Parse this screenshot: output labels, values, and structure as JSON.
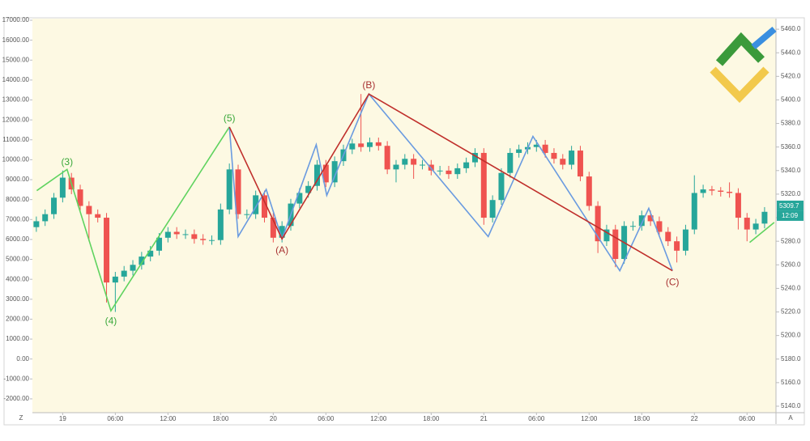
{
  "chart_data": {
    "type": "candlestick",
    "categories": [
      null,
      null,
      null,
      "19",
      null,
      null,
      null,
      null,
      null,
      "06:00",
      null,
      null,
      null,
      null,
      null,
      "12:00",
      null,
      null,
      null,
      null,
      null,
      "18:00",
      null,
      null,
      null,
      null,
      null,
      "20",
      null,
      null,
      null,
      null,
      null,
      "06:00",
      null,
      null,
      null,
      null,
      null,
      "12:00",
      null,
      null,
      null,
      null,
      null,
      "18:00",
      null,
      null,
      null,
      null,
      null,
      "21",
      null,
      null,
      null,
      null,
      null,
      "06:00",
      null,
      null,
      null,
      null,
      null,
      "12:00",
      null,
      null,
      null,
      null,
      null,
      "18:00",
      null,
      null,
      null,
      null,
      null,
      "22",
      null,
      null,
      null,
      null,
      null,
      "06:00",
      null,
      null
    ],
    "series": [
      {
        "axis": "y2",
        "up_color": "#26a69a",
        "down_color": "#ef5350",
        "open": [
          5292,
          5297,
          5303,
          5317,
          5334,
          5324,
          5310,
          5303,
          5300,
          5245,
          5250,
          5255,
          5260,
          5267,
          5272,
          5283,
          5288,
          5286,
          5286,
          5282,
          5281,
          5281,
          5307,
          5341,
          5303,
          5303,
          5319,
          5300,
          5283,
          5293,
          5312,
          5321,
          5327,
          5345,
          5330,
          5348,
          5358,
          5363,
          5360,
          5364,
          5361,
          5341,
          5345,
          5350,
          5345,
          5345,
          5340,
          5340,
          5337,
          5342,
          5347,
          5355,
          5300,
          5315,
          5338,
          5355,
          5358,
          5360,
          5362,
          5355,
          5350,
          5345,
          5357,
          5335,
          5310,
          5280,
          5290,
          5265,
          5293,
          5293,
          5302,
          5297,
          5288,
          5280,
          5272,
          5290,
          5321,
          5324,
          5323,
          5322,
          5321,
          5300,
          5290,
          5295
        ],
        "high": [
          5301,
          5307,
          5321,
          5340,
          5338,
          5328,
          5314,
          5307,
          5304,
          5254,
          5259,
          5264,
          5271,
          5276,
          5287,
          5292,
          5292,
          5290,
          5290,
          5286,
          5285,
          5312,
          5346,
          5345,
          5307,
          5323,
          5323,
          5304,
          5297,
          5316,
          5325,
          5331,
          5349,
          5349,
          5352,
          5362,
          5367,
          5405,
          5368,
          5368,
          5365,
          5349,
          5354,
          5354,
          5349,
          5349,
          5344,
          5344,
          5346,
          5351,
          5359,
          5359,
          5319,
          5342,
          5359,
          5362,
          5364,
          5366,
          5366,
          5359,
          5354,
          5361,
          5361,
          5339,
          5314,
          5294,
          5294,
          5297,
          5297,
          5306,
          5306,
          5301,
          5292,
          5284,
          5294,
          5336,
          5328,
          5327,
          5326,
          5330,
          5325,
          5304,
          5299,
          5309
        ],
        "low": [
          5288,
          5293,
          5299,
          5313,
          5320,
          5306,
          5280,
          5296,
          5228,
          5220,
          5246,
          5251,
          5256,
          5263,
          5268,
          5279,
          5282,
          5282,
          5278,
          5277,
          5277,
          5277,
          5303,
          5299,
          5299,
          5299,
          5296,
          5279,
          5279,
          5289,
          5308,
          5317,
          5323,
          5326,
          5326,
          5344,
          5354,
          5356,
          5356,
          5357,
          5337,
          5330,
          5341,
          5333,
          5341,
          5336,
          5336,
          5333,
          5333,
          5338,
          5343,
          5294,
          5296,
          5311,
          5334,
          5351,
          5354,
          5356,
          5351,
          5346,
          5341,
          5341,
          5331,
          5306,
          5270,
          5276,
          5258,
          5261,
          5289,
          5289,
          5293,
          5284,
          5276,
          5262,
          5268,
          5286,
          5317,
          5319,
          5318,
          5317,
          5290,
          5280,
          5286,
          5291
        ],
        "close": [
          5297,
          5303,
          5317,
          5334,
          5324,
          5310,
          5303,
          5300,
          5245,
          5250,
          5255,
          5260,
          5267,
          5272,
          5283,
          5288,
          5286,
          5286,
          5282,
          5281,
          5281,
          5307,
          5341,
          5303,
          5303,
          5319,
          5300,
          5283,
          5293,
          5312,
          5321,
          5327,
          5345,
          5330,
          5348,
          5358,
          5363,
          5360,
          5364,
          5361,
          5341,
          5345,
          5350,
          5345,
          5345,
          5340,
          5340,
          5337,
          5342,
          5347,
          5355,
          5300,
          5315,
          5338,
          5355,
          5358,
          5360,
          5362,
          5355,
          5350,
          5345,
          5357,
          5335,
          5310,
          5280,
          5290,
          5265,
          5293,
          5293,
          5302,
          5297,
          5288,
          5280,
          5272,
          5290,
          5321,
          5324,
          5323,
          5322,
          5321,
          5300,
          5290,
          5295,
          5305
        ]
      }
    ],
    "waves": [
      {
        "color": "#5fd35f",
        "x": [
          0.05,
          3.5,
          8.5,
          22
        ],
        "values": [
          5323,
          5341,
          5221,
          5377
        ]
      },
      {
        "color": "#5fd35f",
        "x": [
          81.3,
          84.1
        ],
        "values": [
          5279,
          5296
        ]
      },
      {
        "color": "#6a9be0",
        "x": [
          22,
          23,
          26.2,
          28,
          31.9,
          33.1,
          37.9,
          51.5,
          56.6,
          66.5,
          69.8,
          72.5
        ],
        "values": [
          5377,
          5284,
          5324,
          5282,
          5362,
          5319,
          5405,
          5284,
          5369,
          5255,
          5308,
          5255
        ]
      },
      {
        "color": "#c0302c",
        "x": [
          22,
          28,
          37.9,
          72.5
        ],
        "values": [
          5377,
          5282,
          5405,
          5255
        ]
      }
    ],
    "annotations": [
      {
        "text": "(3)",
        "color": "#3aa83a",
        "x": 3.5,
        "y": 5347
      },
      {
        "text": "(4)",
        "color": "#3aa83a",
        "x": 8.5,
        "y": 5212
      },
      {
        "text": "(5)",
        "color": "#3aa83a",
        "x": 22,
        "y": 5384
      },
      {
        "text": "(A)",
        "color": "#a83232",
        "x": 28,
        "y": 5272
      },
      {
        "text": "(B)",
        "color": "#a83232",
        "x": 37.9,
        "y": 5412
      },
      {
        "text": "(C)",
        "color": "#a83232",
        "x": 72.5,
        "y": 5245
      }
    ],
    "ylim": [
      -2693,
      17082
    ],
    "yticks": [
      {
        "value": 17000,
        "label": "17000.00"
      },
      {
        "value": 16000,
        "label": "16000.00"
      },
      {
        "value": 15000,
        "label": "15000.00"
      },
      {
        "value": 14000,
        "label": "14000.00"
      },
      {
        "value": 13000,
        "label": "13000.00"
      },
      {
        "value": 12000,
        "label": "12000.00"
      },
      {
        "value": 11000,
        "label": "11000.00"
      },
      {
        "value": 10000,
        "label": "10000.00"
      },
      {
        "value": 9000,
        "label": "9000.00"
      },
      {
        "value": 8000,
        "label": "8000.00"
      },
      {
        "value": 7000,
        "label": "7000.00"
      },
      {
        "value": 6000,
        "label": "6000.00"
      },
      {
        "value": 5000,
        "label": "5000.00"
      },
      {
        "value": 4000,
        "label": "4000.00"
      },
      {
        "value": 3000,
        "label": "3000.00"
      },
      {
        "value": 2000,
        "label": "2000.00"
      },
      {
        "value": 1000,
        "label": "1000.00"
      },
      {
        "value": 0,
        "label": "0.00"
      },
      {
        "value": -1000,
        "label": "-1000.00"
      },
      {
        "value": -2000,
        "label": "-2000.00"
      }
    ],
    "y2lim": [
      5134.5,
      5469
    ],
    "y2ticks": [
      {
        "value": 5460,
        "label": "5460.0"
      },
      {
        "value": 5440,
        "label": "5440.0"
      },
      {
        "value": 5420,
        "label": "5420.0"
      },
      {
        "value": 5400,
        "label": "5400.0"
      },
      {
        "value": 5380,
        "label": "5380.0"
      },
      {
        "value": 5360,
        "label": "5360.0"
      },
      {
        "value": 5340,
        "label": "5340.0"
      },
      {
        "value": 5320,
        "label": "5320.0"
      },
      {
        "value": 5300,
        "label": "5300.0"
      },
      {
        "value": 5280,
        "label": "5280.0"
      },
      {
        "value": 5260,
        "label": "5260.0"
      },
      {
        "value": 5240,
        "label": "5240.0"
      },
      {
        "value": 5220,
        "label": "5220.0"
      },
      {
        "value": 5200,
        "label": "5200.0"
      },
      {
        "value": 5180,
        "label": "5180.0"
      },
      {
        "value": 5160,
        "label": "5160.0"
      },
      {
        "value": 5140,
        "label": "5140.0"
      }
    ],
    "grid": false,
    "last_price": 5309.7,
    "last_price_color": "#26a69a",
    "countdown": "12:09",
    "left_button": "Z",
    "right_button": "A"
  }
}
